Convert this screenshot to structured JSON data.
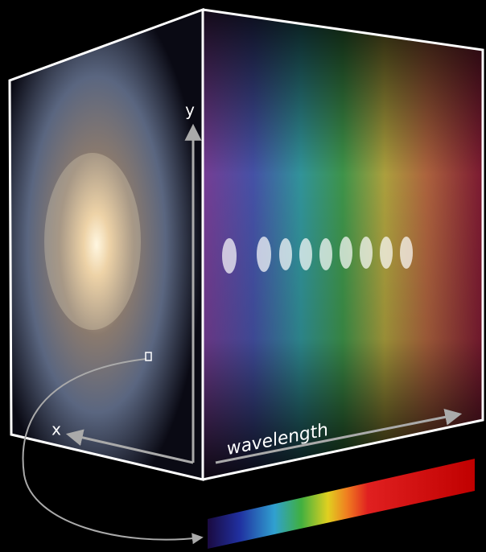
{
  "labels": {
    "y": "y",
    "x": "x",
    "wavelength": "wavelength"
  }
}
